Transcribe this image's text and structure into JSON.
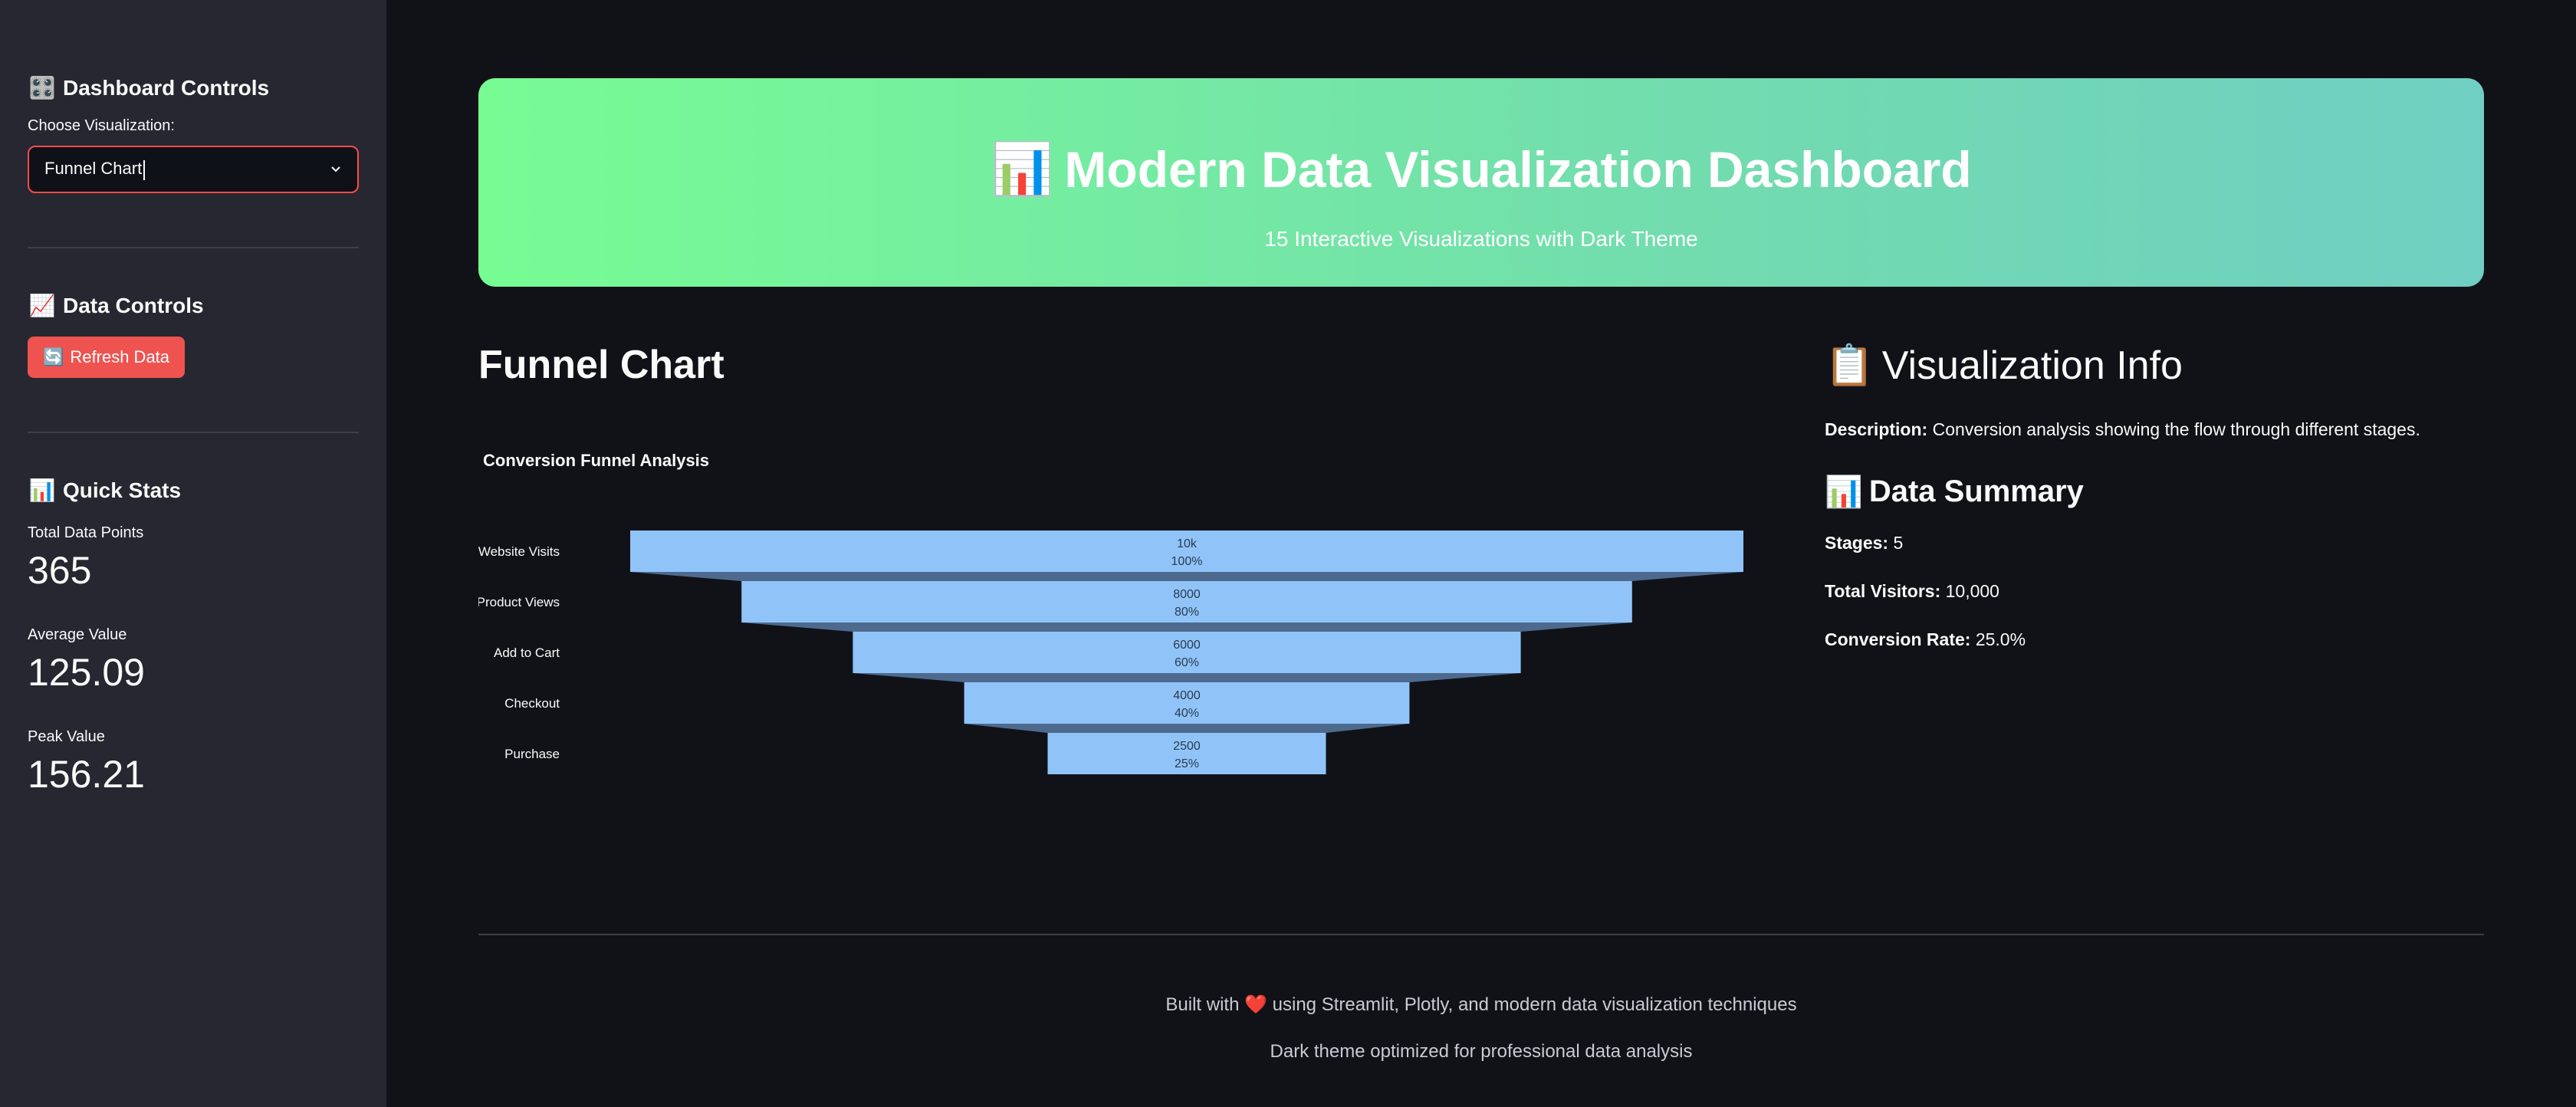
{
  "sidebar": {
    "controls_heading": "Dashboard Controls",
    "controls_icon": "🎛️",
    "choose_label": "Choose Visualization:",
    "selected_visualization": "Funnel Chart",
    "data_controls_heading": "Data Controls",
    "data_controls_icon": "📈",
    "refresh_label": "Refresh Data",
    "refresh_icon": "🔄",
    "quick_stats_heading": "Quick Stats",
    "quick_stats_icon": "📊",
    "stats": [
      {
        "label": "Total Data Points",
        "value": "365"
      },
      {
        "label": "Average Value",
        "value": "125.09"
      },
      {
        "label": "Peak Value",
        "value": "156.21"
      }
    ]
  },
  "hero": {
    "icon": "📊",
    "title": "Modern Data Visualization Dashboard",
    "subtitle": "15 Interactive Visualizations with Dark Theme"
  },
  "main": {
    "viz_title": "Funnel Chart"
  },
  "info": {
    "icon": "📋",
    "heading": "Visualization Info",
    "description_label": "Description:",
    "description_text": " Conversion analysis showing the flow through different stages.",
    "summary_icon": "📊",
    "summary_heading": "Data Summary",
    "stages_label": "Stages:",
    "stages_value": " 5",
    "visitors_label": "Total Visitors:",
    "visitors_value": " 10,000",
    "rate_label": "Conversion Rate:",
    "rate_value": " 25.0%"
  },
  "footer": {
    "line1_pre": "Built with ",
    "line1_heart": "❤️",
    "line1_post": " using Streamlit, Plotly, and modern data visualization techniques",
    "line2": "Dark theme optimized for professional data analysis"
  },
  "colors": {
    "bar": "#90c4f9",
    "connector": "#4d6a8e",
    "accent": "#ff4b4b"
  },
  "chart_data": {
    "type": "funnel",
    "title": "Conversion Funnel Analysis",
    "categories": [
      "Website Visits",
      "Product Views",
      "Add to Cart",
      "Checkout",
      "Purchase"
    ],
    "values": [
      10000,
      8000,
      6000,
      4000,
      2500
    ],
    "value_labels": [
      "10k",
      "8000",
      "6000",
      "4000",
      "2500"
    ],
    "percent_labels": [
      "100%",
      "80%",
      "60%",
      "40%",
      "25%"
    ]
  }
}
